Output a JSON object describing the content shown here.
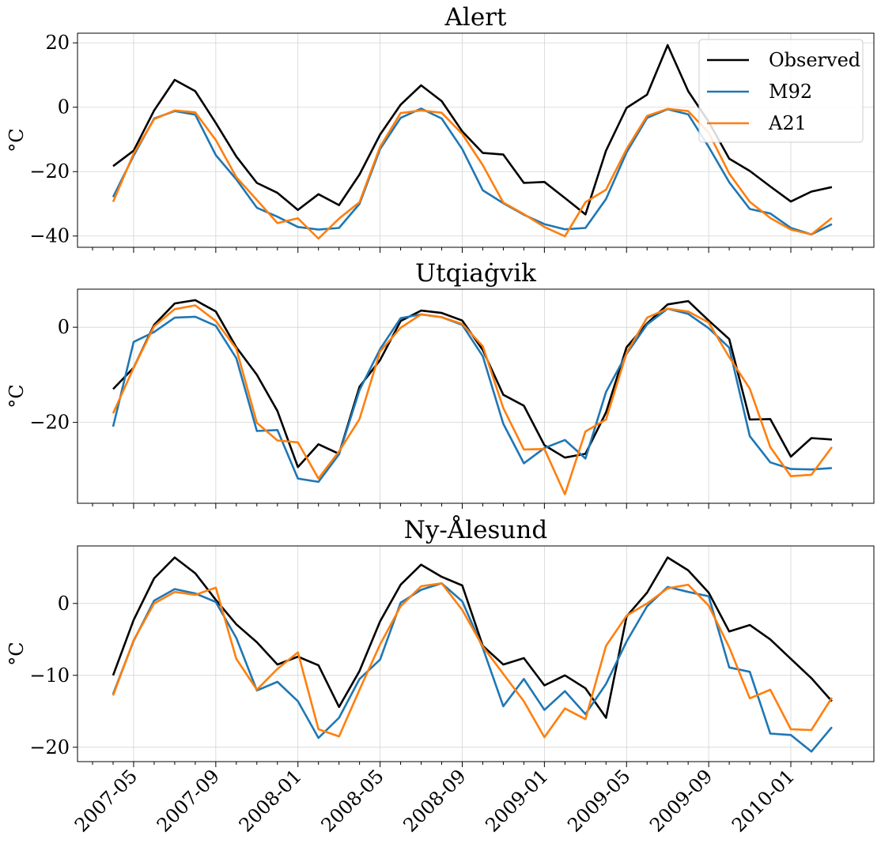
{
  "chart_data": [
    {
      "type": "line",
      "title": "Alert",
      "ylabel": "°C",
      "ylim": [
        -43.5,
        23
      ],
      "yticks": [
        20,
        0,
        -20,
        -40
      ],
      "grid": true,
      "legend": {
        "placement": "top-right",
        "entries": [
          "Observed",
          "M92",
          "A21"
        ]
      },
      "x": [
        "2007-04",
        "2007-05",
        "2007-06",
        "2007-07",
        "2007-08",
        "2007-09",
        "2007-10",
        "2007-11",
        "2007-12",
        "2008-01",
        "2008-02",
        "2008-03",
        "2008-04",
        "2008-05",
        "2008-06",
        "2008-07",
        "2008-08",
        "2008-09",
        "2008-10",
        "2008-11",
        "2008-12",
        "2009-01",
        "2009-02",
        "2009-03",
        "2009-04",
        "2009-05",
        "2009-06",
        "2009-07",
        "2009-08",
        "2009-09",
        "2009-10",
        "2009-11",
        "2009-12",
        "2010-01",
        "2010-02",
        "2010-03"
      ],
      "series": [
        {
          "name": "Observed",
          "values": [
            -18.3,
            -13.5,
            -1.0,
            8.5,
            5.0,
            -4.9,
            -15.3,
            -23.5,
            -26.6,
            -31.9,
            -27.0,
            -30.4,
            -20.9,
            -8.5,
            0.8,
            6.8,
            1.9,
            -7.5,
            -14.2,
            -14.7,
            -23.5,
            -23.2,
            -28.2,
            -33.3,
            -13.5,
            -0.2,
            3.9,
            19.3,
            5.0,
            -4.5,
            -16.0,
            -19.8,
            -24.6,
            -29.3,
            -26.2,
            -24.8
          ]
        },
        {
          "name": "M92",
          "values": [
            -27.9,
            -15.0,
            -3.5,
            -1.2,
            -2.3,
            -14.9,
            -22.4,
            -31.2,
            -34.0,
            -37.2,
            -38.0,
            -37.5,
            -30.0,
            -13.0,
            -3.3,
            -0.4,
            -3.5,
            -13.0,
            -25.8,
            -29.8,
            -33.4,
            -36.3,
            -37.9,
            -37.5,
            -28.5,
            -14.0,
            -3.3,
            -0.6,
            -2.2,
            -12.3,
            -23.3,
            -31.6,
            -33.0,
            -37.5,
            -39.5,
            -36.3
          ]
        },
        {
          "name": "A21",
          "values": [
            -29.4,
            -14.4,
            -3.7,
            -1.0,
            -1.6,
            -10.2,
            -21.7,
            -28.8,
            -36.0,
            -34.5,
            -40.8,
            -34.6,
            -29.5,
            -12.3,
            -1.8,
            -1.0,
            -1.7,
            -8.3,
            -18.0,
            -29.6,
            -33.2,
            -37.2,
            -40.1,
            -29.5,
            -25.6,
            -13.0,
            -2.7,
            -0.5,
            -1.2,
            -7.9,
            -20.6,
            -29.4,
            -34.4,
            -38.0,
            -39.5,
            -34.4
          ]
        }
      ]
    },
    {
      "type": "line",
      "title": "Utqiaġvik",
      "ylabel": "°C",
      "ylim": [
        -37,
        8
      ],
      "yticks": [
        0,
        -20
      ],
      "grid": true,
      "x": [
        "2007-04",
        "2007-05",
        "2007-06",
        "2007-07",
        "2007-08",
        "2007-09",
        "2007-10",
        "2007-11",
        "2007-12",
        "2008-01",
        "2008-02",
        "2008-03",
        "2008-04",
        "2008-05",
        "2008-06",
        "2008-07",
        "2008-08",
        "2008-09",
        "2008-10",
        "2008-11",
        "2008-12",
        "2009-01",
        "2009-02",
        "2009-03",
        "2009-04",
        "2009-05",
        "2009-06",
        "2009-07",
        "2009-08",
        "2009-09",
        "2009-10",
        "2009-11",
        "2009-12",
        "2010-01",
        "2010-02",
        "2010-03"
      ],
      "series": [
        {
          "name": "Observed",
          "values": [
            -13.0,
            -8.5,
            0.5,
            5.0,
            5.7,
            3.3,
            -4.2,
            -10.0,
            -17.6,
            -29.4,
            -24.6,
            -26.6,
            -12.5,
            -6.9,
            1.3,
            3.5,
            3.0,
            1.4,
            -4.8,
            -14.2,
            -16.5,
            -24.8,
            -27.4,
            -26.6,
            -17.9,
            -4.2,
            0.8,
            4.8,
            5.5,
            1.4,
            -2.5,
            -19.4,
            -19.3,
            -27.2,
            -23.3,
            -23.6
          ]
        },
        {
          "name": "M92",
          "values": [
            -20.9,
            -3.1,
            -1.0,
            2.0,
            2.2,
            0.3,
            -6.5,
            -21.8,
            -21.6,
            -31.8,
            -32.5,
            -26.7,
            -13.2,
            -4.6,
            1.9,
            2.7,
            2.1,
            0.5,
            -6.1,
            -20.3,
            -28.6,
            -25.4,
            -23.7,
            -27.6,
            -13.6,
            -5.6,
            0.6,
            3.9,
            2.8,
            -0.2,
            -4.3,
            -22.9,
            -28.4,
            -29.8,
            -29.9,
            -29.6
          ]
        },
        {
          "name": "A21",
          "values": [
            -18.1,
            -8.5,
            0.2,
            3.8,
            4.6,
            1.3,
            -4.5,
            -20.1,
            -23.8,
            -24.2,
            -31.8,
            -26.1,
            -19.3,
            -5.1,
            -0.1,
            2.7,
            2.1,
            0.7,
            -4.0,
            -17.0,
            -25.7,
            -25.6,
            -35.1,
            -21.9,
            -19.4,
            -5.4,
            2.0,
            3.9,
            3.3,
            1.0,
            -6.3,
            -12.9,
            -25.2,
            -31.3,
            -31.0,
            -25.2
          ]
        }
      ]
    },
    {
      "type": "line",
      "title": "Ny-Ålesund",
      "ylabel": "°C",
      "ylim": [
        -22,
        8
      ],
      "yticks": [
        0,
        -10,
        -20
      ],
      "grid": true,
      "x": [
        "2007-04",
        "2007-05",
        "2007-06",
        "2007-07",
        "2007-08",
        "2007-09",
        "2007-10",
        "2007-11",
        "2007-12",
        "2008-01",
        "2008-02",
        "2008-03",
        "2008-04",
        "2008-05",
        "2008-06",
        "2008-07",
        "2008-08",
        "2008-09",
        "2008-10",
        "2008-11",
        "2008-12",
        "2009-01",
        "2009-02",
        "2009-03",
        "2009-04",
        "2009-05",
        "2009-06",
        "2009-07",
        "2009-08",
        "2009-09",
        "2009-10",
        "2009-11",
        "2009-12",
        "2010-01",
        "2010-02",
        "2010-03"
      ],
      "series": [
        {
          "name": "Observed",
          "values": [
            -10.0,
            -2.3,
            3.5,
            6.4,
            4.2,
            0.5,
            -2.9,
            -5.4,
            -8.5,
            -7.4,
            -8.6,
            -14.4,
            -9.4,
            -2.5,
            2.6,
            5.4,
            3.7,
            2.5,
            -5.9,
            -8.5,
            -7.6,
            -11.4,
            -10.0,
            -11.8,
            -15.9,
            -1.8,
            1.5,
            6.4,
            4.6,
            1.5,
            -3.9,
            -3.0,
            -5.0,
            -7.7,
            -10.4,
            -13.6
          ]
        },
        {
          "name": "M92",
          "values": [
            -12.6,
            -5.2,
            0.4,
            2.0,
            1.4,
            0.2,
            -4.8,
            -12.1,
            -10.9,
            -13.6,
            -18.7,
            -15.9,
            -10.5,
            -7.8,
            0.1,
            1.9,
            2.8,
            0.3,
            -6.2,
            -14.3,
            -10.5,
            -14.8,
            -12.2,
            -15.4,
            -11.2,
            -5.3,
            -0.4,
            2.3,
            1.6,
            1.0,
            -8.9,
            -9.5,
            -18.1,
            -18.3,
            -20.6,
            -17.2
          ]
        },
        {
          "name": "A21",
          "values": [
            -12.8,
            -5.1,
            0.0,
            1.6,
            1.2,
            2.2,
            -7.7,
            -12.0,
            -9.1,
            -6.8,
            -17.5,
            -18.5,
            -12.0,
            -5.7,
            -0.4,
            2.4,
            2.8,
            -0.9,
            -6.0,
            -9.8,
            -13.6,
            -18.6,
            -14.6,
            -16.1,
            -5.9,
            -1.7,
            0.0,
            2.1,
            2.6,
            -0.3,
            -6.1,
            -13.2,
            -12.0,
            -17.5,
            -17.6,
            -13.1
          ]
        }
      ]
    }
  ],
  "xticks": [
    "2007-05",
    "2007-09",
    "2008-01",
    "2008-05",
    "2008-09",
    "2009-01",
    "2009-05",
    "2009-09",
    "2010-01"
  ],
  "colors": {
    "Observed": "#000000",
    "M92": "#1f77b4",
    "A21": "#ff7f0e",
    "grid": "#d3d3d3"
  }
}
